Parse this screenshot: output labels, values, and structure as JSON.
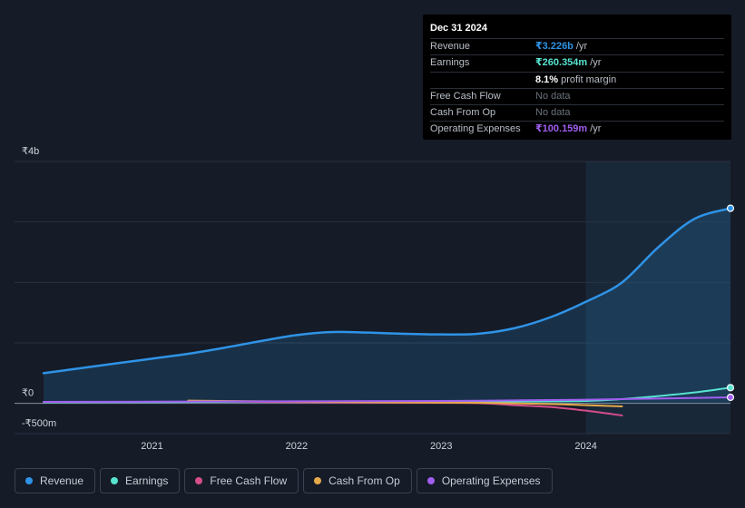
{
  "tooltip": {
    "date": "Dec 31 2024",
    "rows": [
      {
        "label": "Revenue",
        "value": "₹3.226b",
        "unit": "/yr",
        "color": "#2f93e6"
      },
      {
        "label": "Earnings",
        "value": "₹260.354m",
        "unit": "/yr",
        "color": "#57e3d0"
      },
      {
        "label": "",
        "value": "8.1%",
        "unit": "profit margin",
        "color": "#ffffff"
      },
      {
        "label": "Free Cash Flow",
        "value": "No data"
      },
      {
        "label": "Cash From Op",
        "value": "No data"
      },
      {
        "label": "Operating Expenses",
        "value": "₹100.159m",
        "unit": "/yr",
        "color": "#a15ef0"
      }
    ]
  },
  "legend": [
    {
      "label": "Revenue",
      "color": "#2f93e6"
    },
    {
      "label": "Earnings",
      "color": "#57e3d0"
    },
    {
      "label": "Free Cash Flow",
      "color": "#d64d8c"
    },
    {
      "label": "Cash From Op",
      "color": "#e5a94b"
    },
    {
      "label": "Operating Expenses",
      "color": "#a15ef0"
    }
  ],
  "chart_data": {
    "type": "line",
    "ylim": [
      -500,
      4000
    ],
    "y_ticks": [
      {
        "value": 4000,
        "label": "₹4b"
      },
      {
        "value": 0,
        "label": "₹0"
      },
      {
        "value": -500,
        "label": "-₹500m"
      }
    ],
    "x_ticks": [
      {
        "value": 2021,
        "label": "2021"
      },
      {
        "value": 2022,
        "label": "2022"
      },
      {
        "value": 2023,
        "label": "2023"
      },
      {
        "value": 2024,
        "label": "2024"
      }
    ],
    "xlim": [
      2020.25,
      2025.0
    ],
    "highlight_start": 2024.0,
    "series": [
      {
        "name": "Revenue",
        "color": "#2f93e6",
        "area": true,
        "x": [
          2020.25,
          2020.5,
          2020.75,
          2021.0,
          2021.25,
          2021.5,
          2021.75,
          2022.0,
          2022.25,
          2022.5,
          2022.75,
          2023.0,
          2023.25,
          2023.5,
          2023.75,
          2024.0,
          2024.25,
          2024.5,
          2024.75,
          2025.0
        ],
        "y": [
          500,
          580,
          660,
          740,
          820,
          920,
          1030,
          1130,
          1180,
          1170,
          1150,
          1140,
          1150,
          1240,
          1420,
          1680,
          2000,
          2580,
          3050,
          3226
        ]
      },
      {
        "name": "Earnings",
        "color": "#57e3d0",
        "x": [
          2020.25,
          2021.0,
          2022.0,
          2023.0,
          2023.5,
          2024.0,
          2024.25,
          2024.5,
          2024.75,
          2025.0
        ],
        "y": [
          20,
          22,
          30,
          25,
          28,
          40,
          70,
          120,
          180,
          260
        ]
      },
      {
        "name": "Free Cash Flow",
        "color": "#d64d8c",
        "x": [
          2021.25,
          2021.75,
          2022.25,
          2022.75,
          2023.25,
          2023.5,
          2023.75,
          2024.0,
          2024.25
        ],
        "y": [
          40,
          25,
          15,
          10,
          5,
          -30,
          -60,
          -120,
          -200
        ]
      },
      {
        "name": "Cash From Op",
        "color": "#e5a94b",
        "x": [
          2021.25,
          2021.75,
          2022.25,
          2022.75,
          2023.25,
          2023.75,
          2024.0,
          2024.25
        ],
        "y": [
          45,
          35,
          25,
          15,
          10,
          -10,
          -30,
          -50
        ]
      },
      {
        "name": "Operating Expenses",
        "color": "#a15ef0",
        "x": [
          2020.25,
          2021.0,
          2022.0,
          2023.0,
          2023.5,
          2024.0,
          2024.5,
          2025.0
        ],
        "y": [
          25,
          28,
          35,
          40,
          50,
          60,
          80,
          100
        ]
      }
    ]
  }
}
